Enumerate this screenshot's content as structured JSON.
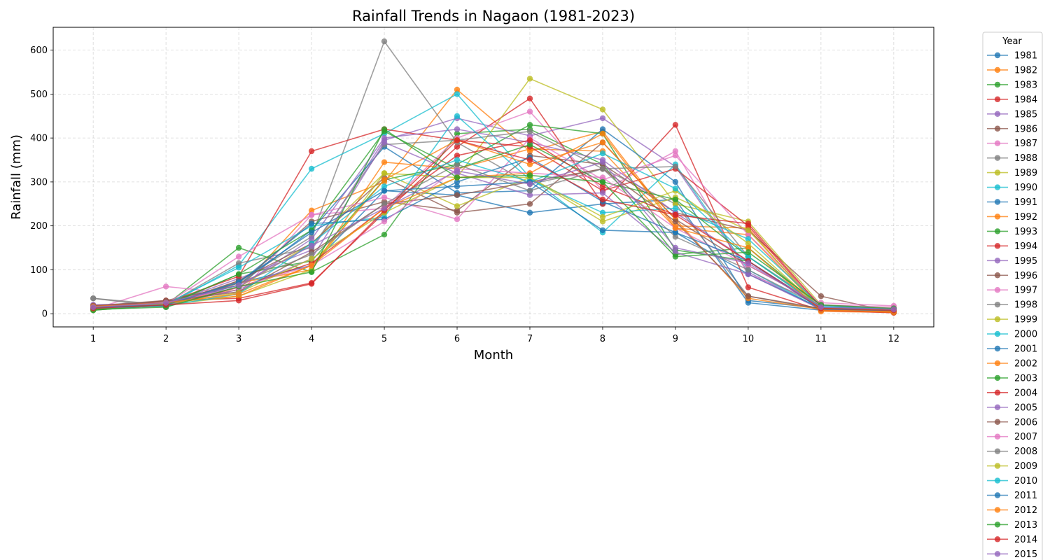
{
  "chart_data": {
    "type": "line",
    "title": "Rainfall Trends in Nagaon (1981-2023)",
    "xlabel": "Month",
    "ylabel": "Rainfall (mm)",
    "xlim": [
      0.45,
      12.55
    ],
    "ylim": [
      -30,
      652
    ],
    "x": [
      1,
      2,
      3,
      4,
      5,
      6,
      7,
      8,
      9,
      10,
      11,
      12
    ],
    "yticks": [
      0,
      100,
      200,
      300,
      400,
      500,
      600
    ],
    "grid": true,
    "legend_title": "Year",
    "legend_position": "outside-right",
    "palette": [
      "#1f77b4",
      "#ff7f0e",
      "#2ca02c",
      "#d62728",
      "#9467bd",
      "#8c564b",
      "#e377c2",
      "#7f7f7f",
      "#bcbd22",
      "#17becf"
    ],
    "series": [
      {
        "name": "1981",
        "values": [
          15,
          20,
          70,
          110,
          280,
          270,
          230,
          250,
          260,
          25,
          8,
          5
        ]
      },
      {
        "name": "1982",
        "values": [
          12,
          25,
          55,
          235,
          300,
          510,
          370,
          415,
          200,
          195,
          5,
          3
        ]
      },
      {
        "name": "1983",
        "values": [
          8,
          20,
          150,
          95,
          180,
          410,
          420,
          340,
          135,
          150,
          15,
          8
        ]
      },
      {
        "name": "1984",
        "values": [
          10,
          30,
          35,
          70,
          230,
          380,
          490,
          250,
          430,
          60,
          8,
          2
        ]
      },
      {
        "name": "1985",
        "values": [
          20,
          22,
          80,
          145,
          395,
          445,
          405,
          445,
          335,
          95,
          10,
          5
        ]
      },
      {
        "name": "1986",
        "values": [
          18,
          30,
          65,
          210,
          255,
          235,
          360,
          340,
          230,
          190,
          40,
          3
        ]
      },
      {
        "name": "1987",
        "values": [
          10,
          62,
          45,
          225,
          240,
          400,
          460,
          280,
          370,
          90,
          25,
          18
        ]
      },
      {
        "name": "1988",
        "values": [
          35,
          15,
          75,
          175,
          620,
          390,
          295,
          330,
          250,
          40,
          10,
          5
        ]
      },
      {
        "name": "1989",
        "values": [
          10,
          25,
          60,
          160,
          320,
          310,
          535,
          465,
          250,
          210,
          20,
          10
        ]
      },
      {
        "name": "1990",
        "values": [
          12,
          18,
          110,
          330,
          410,
          500,
          310,
          185,
          340,
          100,
          10,
          5
        ]
      },
      {
        "name": "1991",
        "values": [
          14,
          22,
          65,
          190,
          380,
          275,
          280,
          420,
          300,
          30,
          12,
          6
        ]
      },
      {
        "name": "1992",
        "values": [
          16,
          20,
          70,
          100,
          345,
          330,
          375,
          370,
          195,
          180,
          10,
          5
        ]
      },
      {
        "name": "1993",
        "values": [
          12,
          18,
          90,
          120,
          305,
          340,
          430,
          410,
          145,
          120,
          15,
          10
        ]
      },
      {
        "name": "1994",
        "values": [
          15,
          25,
          85,
          370,
          420,
          395,
          380,
          280,
          330,
          200,
          12,
          8
        ]
      },
      {
        "name": "1995",
        "values": [
          20,
          25,
          60,
          170,
          400,
          420,
          390,
          350,
          230,
          120,
          15,
          10
        ]
      },
      {
        "name": "1996",
        "values": [
          15,
          20,
          75,
          160,
          310,
          230,
          250,
          390,
          215,
          110,
          20,
          8
        ]
      },
      {
        "name": "1997",
        "values": [
          10,
          22,
          130,
          225,
          265,
          215,
          400,
          305,
          360,
          180,
          20,
          12
        ]
      },
      {
        "name": "1998",
        "values": [
          35,
          20,
          115,
          150,
          385,
          395,
          415,
          330,
          335,
          130,
          20,
          10
        ]
      },
      {
        "name": "1999",
        "values": [
          10,
          20,
          40,
          100,
          320,
          245,
          310,
          210,
          265,
          190,
          12,
          8
        ]
      },
      {
        "name": "2000",
        "values": [
          15,
          22,
          105,
          200,
          220,
          450,
          305,
          230,
          240,
          170,
          18,
          10
        ]
      },
      {
        "name": "2001",
        "values": [
          12,
          20,
          70,
          205,
          215,
          300,
          355,
          255,
          185,
          90,
          12,
          5
        ]
      },
      {
        "name": "2002",
        "values": [
          18,
          25,
          40,
          110,
          305,
          395,
          340,
          390,
          215,
          35,
          10,
          3
        ]
      },
      {
        "name": "2003",
        "values": [
          8,
          20,
          90,
          190,
          415,
          330,
          385,
          300,
          260,
          130,
          15,
          8
        ]
      },
      {
        "name": "2004",
        "values": [
          12,
          18,
          60,
          115,
          240,
          360,
          395,
          290,
          225,
          205,
          15,
          5
        ]
      },
      {
        "name": "2005",
        "values": [
          15,
          20,
          55,
          125,
          390,
          320,
          270,
          275,
          140,
          90,
          10,
          8
        ]
      },
      {
        "name": "2006",
        "values": [
          18,
          28,
          50,
          140,
          250,
          270,
          300,
          330,
          210,
          40,
          12,
          10
        ]
      },
      {
        "name": "2007",
        "values": [
          12,
          25,
          60,
          110,
          210,
          330,
          320,
          310,
          195,
          110,
          20,
          15
        ]
      },
      {
        "name": "2008",
        "values": [
          15,
          20,
          70,
          135,
          250,
          340,
          280,
          330,
          175,
          100,
          15,
          10
        ]
      },
      {
        "name": "2009",
        "values": [
          10,
          22,
          48,
          125,
          230,
          310,
          310,
          220,
          280,
          160,
          12,
          8
        ]
      },
      {
        "name": "2010",
        "values": [
          12,
          18,
          45,
          160,
          290,
          350,
          300,
          365,
          285,
          130,
          15,
          10
        ]
      },
      {
        "name": "2011",
        "values": [
          14,
          20,
          72,
          185,
          280,
          290,
          300,
          190,
          185,
          120,
          10,
          6
        ]
      },
      {
        "name": "2012",
        "values": [
          16,
          25,
          45,
          110,
          240,
          310,
          320,
          410,
          195,
          150,
          8,
          5
        ]
      },
      {
        "name": "2013",
        "values": [
          10,
          15,
          62,
          95,
          420,
          310,
          315,
          300,
          130,
          140,
          20,
          12
        ]
      },
      {
        "name": "2014",
        "values": [
          12,
          20,
          30,
          68,
          235,
          395,
          350,
          260,
          225,
          120,
          12,
          8
        ]
      },
      {
        "name": "2015",
        "values": [
          15,
          25,
          65,
          155,
          240,
          325,
          295,
          345,
          150,
          115,
          15,
          10
        ]
      }
    ]
  }
}
